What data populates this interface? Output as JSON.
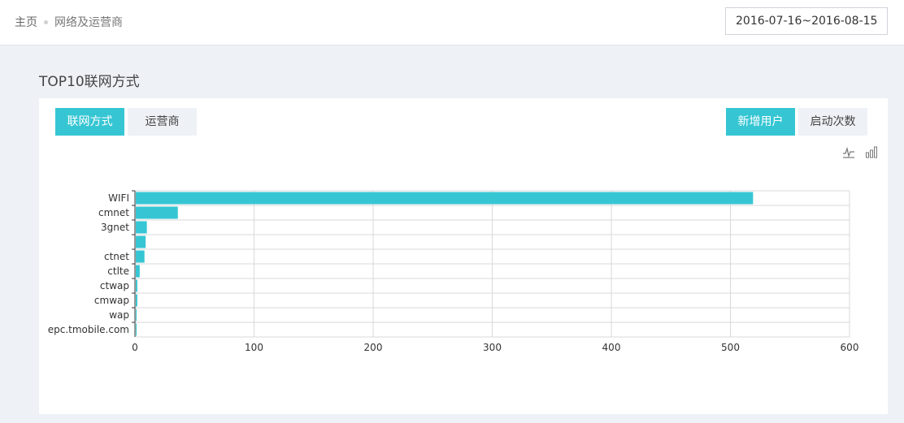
{
  "breadcrumb": {
    "home": "主页",
    "current": "网络及运营商"
  },
  "date_range": "2016-07-16~2016-08-15",
  "section_title": "TOP10联网方式",
  "tabs": {
    "network": "联网方式",
    "carrier": "运营商"
  },
  "metrics": {
    "new_users": "新增用户",
    "launches": "启动次数"
  },
  "icons": {
    "line_chart": "line-chart-icon",
    "bar_chart": "bar-chart-icon"
  },
  "colors": {
    "accent": "#36c6d3"
  },
  "chart_data": {
    "type": "bar",
    "orientation": "horizontal",
    "categories": [
      "WIFI",
      "cmnet",
      "3gnet",
      "",
      "ctnet",
      "ctlte",
      "ctwap",
      "cmwap",
      "wap",
      "epc.tmobile.com"
    ],
    "values": [
      519,
      36,
      10,
      9,
      8,
      4,
      2,
      2,
      1,
      1
    ],
    "xlim": [
      0,
      600
    ],
    "xticks": [
      0,
      100,
      200,
      300,
      400,
      500,
      600
    ],
    "grid": true,
    "color": "#36c6d3"
  }
}
